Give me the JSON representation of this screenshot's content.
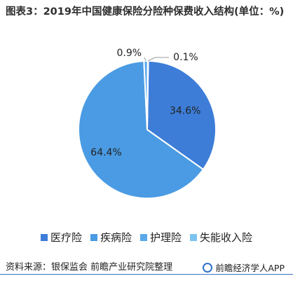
{
  "title": "图表3：2019年中国健康保险分险种保费收入结构(单位：%)",
  "chart_data": {
    "type": "pie",
    "title": "图表3：2019年中国健康保险分险种保费收入结构(单位：%)",
    "unit": "%",
    "legend_position": "bottom",
    "slices": [
      {
        "name": "医疗险",
        "value": 34.6,
        "label": "34.6%",
        "color": "#3d7dd8"
      },
      {
        "name": "疾病险",
        "value": 64.4,
        "label": "64.4%",
        "color": "#4a9be3"
      },
      {
        "name": "护理险",
        "value": 0.9,
        "label": "0.9%",
        "color": "#5aa9ea"
      },
      {
        "name": "失能收入险",
        "value": 0.1,
        "label": "0.1%",
        "color": "#7cc3ef"
      }
    ]
  },
  "source": "资料来源：银保监会 前瞻产业研究院整理",
  "brand": "前瞻经济学人APP"
}
